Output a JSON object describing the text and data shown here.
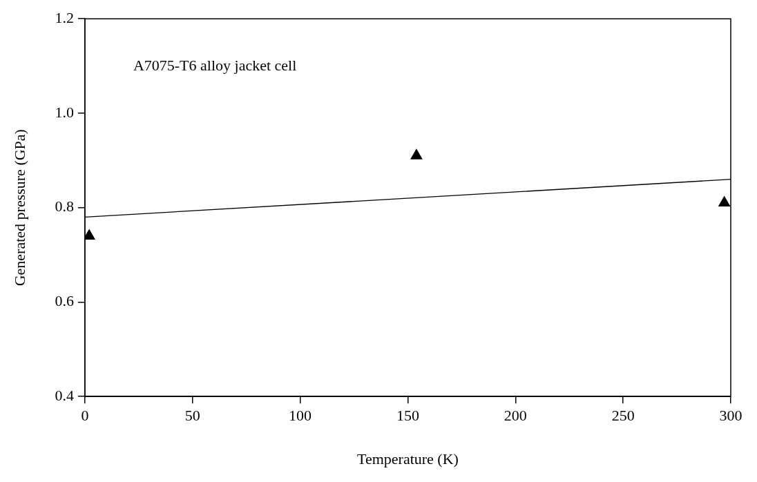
{
  "chart_data": {
    "type": "scatter",
    "xlabel": "Temperature (K)",
    "ylabel": "Generated pressure (GPa)",
    "annotations": [
      "A7075-T6 alloy jacket cell"
    ],
    "series": [
      {
        "color": "#000000",
        "x": [
          2,
          154,
          297
        ],
        "values": [
          0.74,
          0.91,
          0.81
        ],
        "marker": "triangle"
      },
      {
        "type": "line",
        "color": "#000000",
        "x": [
          0,
          300
        ],
        "values": [
          0.78,
          0.86
        ],
        "marker": "none",
        "line_style": "solid"
      }
    ],
    "xlim": [
      0,
      300
    ],
    "xticks": [
      0,
      50,
      100,
      150,
      200,
      250,
      300
    ],
    "ylim": [
      0.4,
      1.2
    ],
    "yticks": [
      0.4,
      0.6,
      0.8,
      {
        "value": 1,
        "label": "1.0"
      },
      1.2
    ],
    "grid": false,
    "legend": false
  }
}
